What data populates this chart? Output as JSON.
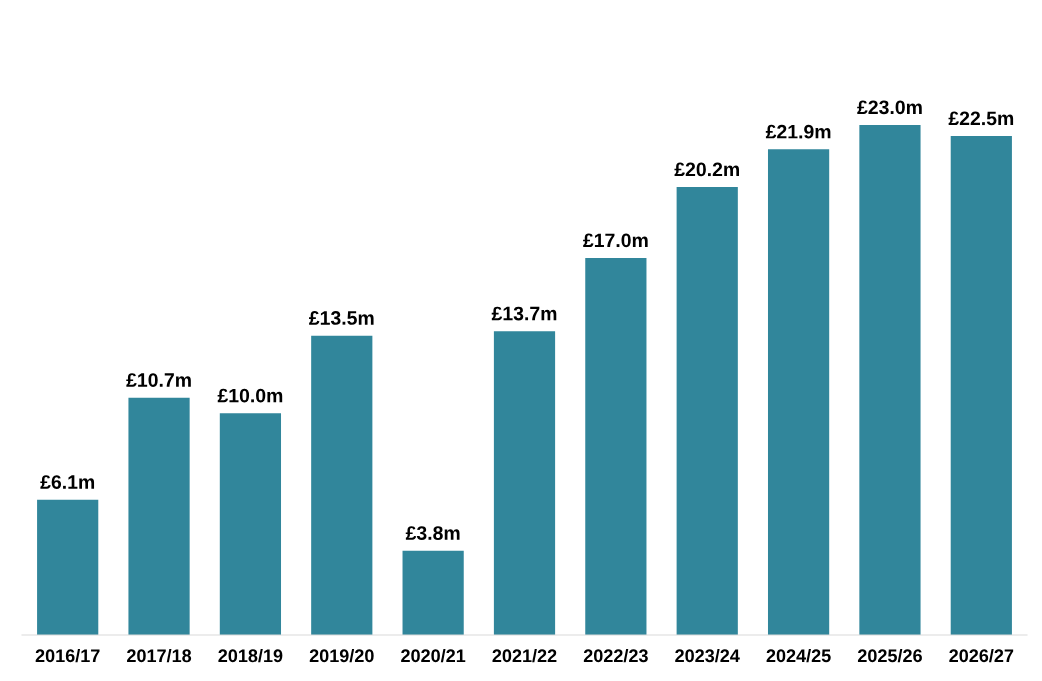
{
  "chart_data": {
    "type": "bar",
    "categories": [
      "2016/17",
      "2017/18",
      "2018/19",
      "2019/20",
      "2020/21",
      "2021/22",
      "2022/23",
      "2023/24",
      "2024/25",
      "2025/26",
      "2026/27"
    ],
    "values": [
      6.1,
      10.7,
      10.0,
      13.5,
      3.8,
      13.7,
      17.0,
      20.2,
      21.9,
      23.0,
      22.5
    ],
    "value_labels": [
      "£6.1m",
      "£10.7m",
      "£10.0m",
      "£13.5m",
      "£3.8m",
      "£13.7m",
      "£17.0m",
      "£20.2m",
      "£21.9m",
      "£23.0m",
      "£22.5m"
    ],
    "color": "#31869b",
    "grid": false,
    "legend": false
  }
}
